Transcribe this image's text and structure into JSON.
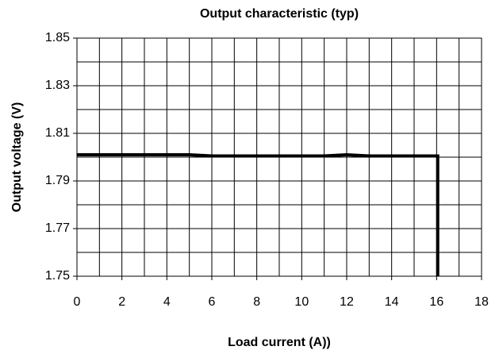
{
  "chart_data": {
    "type": "line",
    "title": "Output characteristic (typ)",
    "x_label": "Load current (A))",
    "y_label": "Output voltage (V)",
    "x": [
      0,
      5,
      6,
      11,
      12,
      13,
      16.05,
      16.05
    ],
    "series": [
      {
        "name": "Output voltage",
        "color": "#000000",
        "values": [
          1.801,
          1.801,
          1.8005,
          1.8005,
          1.801,
          1.8005,
          1.8005,
          1.75
        ]
      }
    ],
    "xlim": [
      0,
      18
    ],
    "xticks": [
      0,
      2,
      4,
      6,
      8,
      10,
      12,
      14,
      16,
      18
    ],
    "ylim": [
      1.75,
      1.85
    ],
    "yticks": [
      1.75,
      1.77,
      1.79,
      1.81,
      1.83,
      1.85
    ],
    "grid": true,
    "minor_grid": true
  }
}
